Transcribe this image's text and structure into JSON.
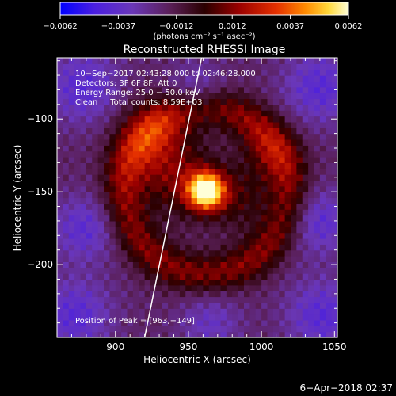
{
  "chart_data": {
    "type": "heatmap",
    "title": "Reconstructed RHESSI Image",
    "xlabel": "Heliocentric X (arcsec)",
    "ylabel": "Heliocentric Y (arcsec)",
    "xlim": [
      860,
      1052
    ],
    "ylim": [
      -250,
      -58
    ],
    "x_ticks": [
      900,
      950,
      1000,
      1050
    ],
    "y_ticks": [
      -200,
      -150,
      -100
    ],
    "x_tick_labels": [
      "900",
      "950",
      "1000",
      "1050"
    ],
    "y_tick_labels": [
      "−200",
      "−150",
      "−100"
    ],
    "colorbar": {
      "min": -0.0062,
      "max": 0.0062,
      "tick_values": [
        -0.0062,
        -0.0037,
        -0.0012,
        0.0012,
        0.0037,
        0.0062
      ],
      "tick_labels": [
        "−0.0062",
        "−0.0037",
        "−0.0012",
        "0.0012",
        "0.0037",
        "0.0062"
      ],
      "unit_label": "(photons cm⁻² s⁻¹ asec⁻²)"
    },
    "annotations": [
      "10−Sep−2017 02:43:28.000 to 02:46:28.000",
      "Detectors: 3F 6F 8F, Att 0",
      "Energy Range: 25.0 − 50.0 keV",
      "Clean     Total counts: 8.59E+03"
    ],
    "peak_label": "Position of Peak = [963,−149]",
    "peak": {
      "x": 963,
      "y": -149
    },
    "limb_line": [
      [
        920,
        -250
      ],
      [
        959,
        -58
      ]
    ],
    "image_components": {
      "peak_amplitude": 0.0062,
      "background": -0.0017,
      "sources": [
        {
          "x": 962,
          "y": -149,
          "sigma": 9,
          "amp": 0.0082
        },
        {
          "x": 940,
          "y": -140,
          "sigma": 20,
          "amp": 0.0022
        },
        {
          "x": 985,
          "y": -155,
          "sigma": 16,
          "amp": 0.0016
        },
        {
          "x": 925,
          "y": -112,
          "sigma": 18,
          "amp": 0.0022
        },
        {
          "x": 1005,
          "y": -122,
          "sigma": 15,
          "amp": 0.0015
        }
      ],
      "ring": {
        "x": 962,
        "y": -149,
        "radius": 57,
        "width": 10,
        "amp": 0.0028
      },
      "negative_lobes": [
        {
          "x": 878,
          "y": -78,
          "sigma": 18,
          "amp": -0.0023
        },
        {
          "x": 1040,
          "y": -78,
          "sigma": 18,
          "amp": -0.0023
        },
        {
          "x": 878,
          "y": -175,
          "sigma": 16,
          "amp": -0.0021
        },
        {
          "x": 1040,
          "y": -170,
          "sigma": 16,
          "amp": -0.0021
        },
        {
          "x": 872,
          "y": -235,
          "sigma": 18,
          "amp": -0.0023
        },
        {
          "x": 1042,
          "y": -235,
          "sigma": 18,
          "amp": -0.0023
        },
        {
          "x": 955,
          "y": -80,
          "sigma": 14,
          "amp": -0.0016
        },
        {
          "x": 965,
          "y": -240,
          "sigma": 15,
          "amp": -0.0016
        }
      ]
    }
  },
  "footer": {
    "date_stamp": "6−Apr−2018 02:37"
  }
}
